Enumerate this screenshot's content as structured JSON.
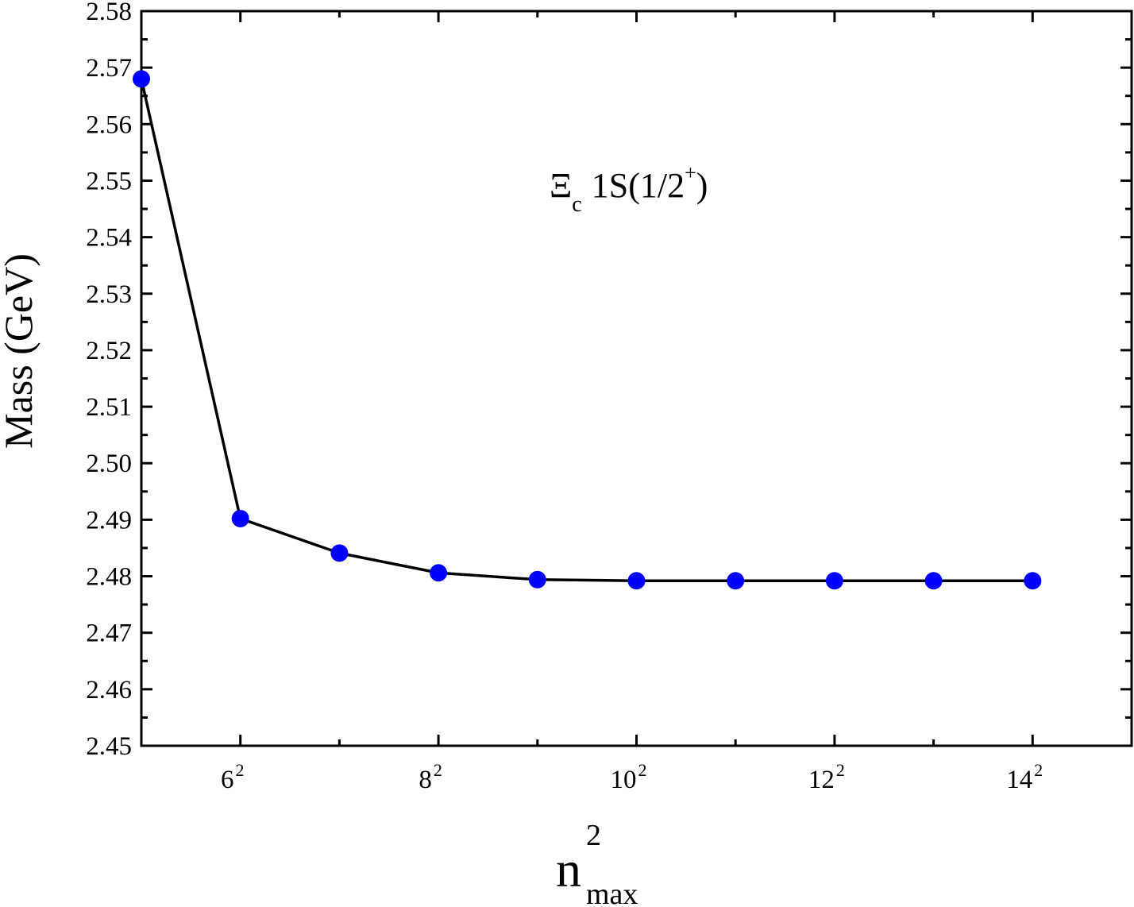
{
  "chart_data": {
    "type": "line",
    "annotation": {
      "symbol": "Ξ",
      "subscript": "c",
      "state": "1S(1/2",
      "superscript": "+",
      "close": ")"
    },
    "ylabel": "Mass (GeV)",
    "xlabel": {
      "base": "n",
      "superscript": "2",
      "subscript": "max"
    },
    "x_scale": "quadratic",
    "x_tick_labels": [
      {
        "base": "6",
        "exp": "2",
        "n": 6
      },
      {
        "base": "8",
        "exp": "2",
        "n": 8
      },
      {
        "base": "10",
        "exp": "2",
        "n": 10
      },
      {
        "base": "12",
        "exp": "2",
        "n": 12
      },
      {
        "base": "14",
        "exp": "2",
        "n": 14
      }
    ],
    "xlim_n": [
      5,
      15
    ],
    "ylim": [
      2.45,
      2.58
    ],
    "y_ticks": [
      "2.45",
      "2.46",
      "2.47",
      "2.48",
      "2.49",
      "2.50",
      "2.51",
      "2.52",
      "2.53",
      "2.54",
      "2.55",
      "2.56",
      "2.57",
      "2.58"
    ],
    "series": [
      {
        "n_max": [
          5,
          6,
          7,
          8,
          9,
          10,
          11,
          12,
          13,
          14
        ],
        "values": [
          2.568,
          2.4902,
          2.4841,
          2.4806,
          2.4794,
          2.4792,
          2.4792,
          2.4792,
          2.4792,
          2.4792
        ],
        "marker_color": "#0000ff",
        "line_color": "#000000"
      }
    ],
    "grid": false,
    "legend": "none"
  }
}
